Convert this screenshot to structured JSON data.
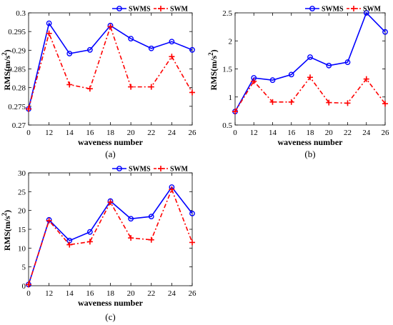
{
  "chart_data": [
    {
      "type": "line",
      "caption": "(a)",
      "xlabel": "waveness number",
      "ylabel": "RMS(m/s",
      "ylabel_sup": "2",
      "ylabel_end": ")",
      "x": [
        0,
        12,
        14,
        16,
        18,
        20,
        22,
        24,
        26
      ],
      "xlim": [
        0,
        26
      ],
      "ylim": [
        0.27,
        0.3
      ],
      "yticks": [
        "0.27",
        "0.275",
        "0.28",
        "0.285",
        "0.29",
        "0.295",
        "0.3"
      ],
      "xticks": [
        "0",
        "12",
        "14",
        "16",
        "18",
        "20",
        "22",
        "24",
        "26"
      ],
      "legend": "top-right",
      "series": [
        {
          "name": "SWMS",
          "color": "#0000ff",
          "marker": "circle",
          "values": [
            0.2743,
            0.2972,
            0.2891,
            0.2901,
            0.2966,
            0.2931,
            0.2905,
            0.2923,
            0.2901
          ]
        },
        {
          "name": "SWM",
          "color": "#ff0000",
          "marker": "plus",
          "values": [
            0.2743,
            0.2945,
            0.2808,
            0.2797,
            0.2963,
            0.2802,
            0.2802,
            0.2883,
            0.2787
          ]
        }
      ]
    },
    {
      "type": "line",
      "caption": "(b)",
      "xlabel": "waveness number",
      "ylabel": "RMS(m/s",
      "ylabel_sup": "2",
      "ylabel_end": ")",
      "x": [
        0,
        12,
        14,
        16,
        18,
        20,
        22,
        24,
        26
      ],
      "xlim": [
        0,
        26
      ],
      "ylim": [
        0.5,
        2.5
      ],
      "yticks": [
        "0.5",
        "1",
        "1.5",
        "2",
        "2.5"
      ],
      "xticks": [
        "0",
        "12",
        "14",
        "16",
        "18",
        "20",
        "22",
        "24",
        "26"
      ],
      "legend": "top-right",
      "series": [
        {
          "name": "SWMS",
          "color": "#0000ff",
          "marker": "circle",
          "values": [
            0.74,
            1.34,
            1.3,
            1.4,
            1.71,
            1.56,
            1.62,
            2.5,
            2.16
          ]
        },
        {
          "name": "SWM",
          "color": "#ff0000",
          "marker": "plus",
          "values": [
            0.74,
            1.28,
            0.91,
            0.91,
            1.35,
            0.9,
            0.89,
            1.32,
            0.88
          ]
        }
      ]
    },
    {
      "type": "line",
      "caption": "(c)",
      "xlabel": "waveness number",
      "ylabel": "RMS(m/s",
      "ylabel_sup": "2",
      "ylabel_end": ")",
      "x": [
        0,
        12,
        14,
        16,
        18,
        20,
        22,
        24,
        26
      ],
      "xlim": [
        0,
        26
      ],
      "ylim": [
        0,
        30
      ],
      "yticks": [
        "0",
        "5",
        "10",
        "15",
        "20",
        "25",
        "30"
      ],
      "xticks": [
        "0",
        "12",
        "14",
        "16",
        "18",
        "20",
        "22",
        "24",
        "26"
      ],
      "legend": "top-right",
      "series": [
        {
          "name": "SWMS",
          "color": "#0000ff",
          "marker": "circle",
          "values": [
            0.3,
            17.5,
            12.0,
            14.3,
            22.5,
            17.8,
            18.4,
            26.2,
            19.2
          ]
        },
        {
          "name": "SWM",
          "color": "#ff0000",
          "marker": "plus",
          "values": [
            0.3,
            17.3,
            10.9,
            11.7,
            22.2,
            12.7,
            12.2,
            25.6,
            11.5
          ]
        }
      ]
    }
  ]
}
